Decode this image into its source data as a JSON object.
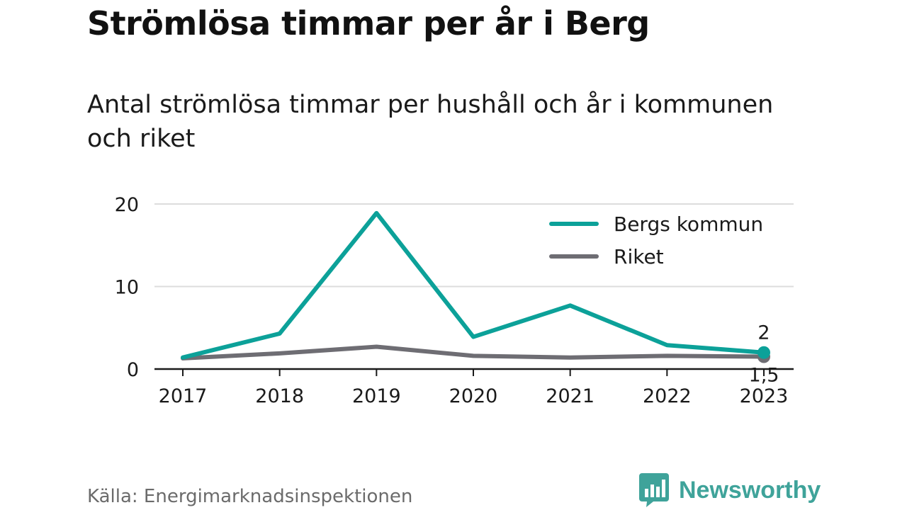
{
  "title": "Strömlösa timmar per år i Berg",
  "subtitle": "Antal strömlösa timmar per hushåll och år i kommunen och riket",
  "source": "Källa: Energimarknadsinspektionen",
  "brand": {
    "name": "Newsworthy",
    "color": "#3fa39a",
    "icon": "newsworthy-logo-icon"
  },
  "chart_data": {
    "type": "line",
    "x": [
      "2017",
      "2018",
      "2019",
      "2020",
      "2021",
      "2022",
      "2023"
    ],
    "ylim": [
      0,
      20
    ],
    "yticks": [
      {
        "value": 0,
        "label": "0"
      },
      {
        "value": 10,
        "label": "10"
      },
      {
        "value": 20,
        "label": "20"
      }
    ],
    "grid": true,
    "legend_position": "top-right",
    "series": [
      {
        "name": "Bergs kommun",
        "color": "#0ca199",
        "values": [
          1.4,
          4.3,
          18.9,
          3.9,
          7.7,
          2.9,
          2.0
        ],
        "end_label": "2"
      },
      {
        "name": "Riket",
        "color": "#6e6d73",
        "values": [
          1.3,
          1.9,
          2.7,
          1.6,
          1.4,
          1.6,
          1.5
        ],
        "end_label": "1,5"
      }
    ]
  }
}
